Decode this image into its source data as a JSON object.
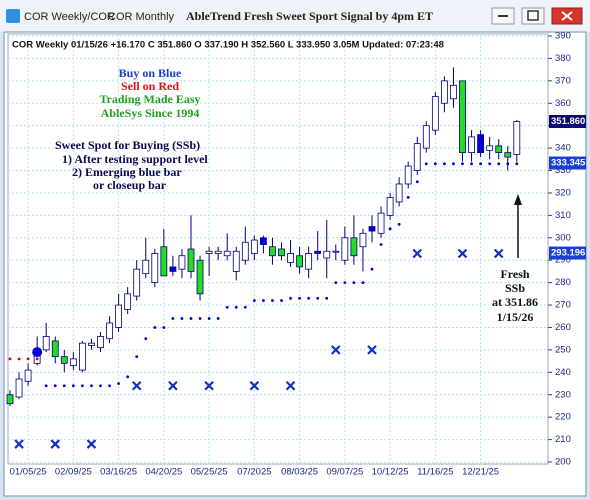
{
  "window": {
    "tabs": [
      "COR Weekly/COR",
      "COR Monthly"
    ],
    "title": "AbleTrend Fresh Sweet Sport Signal by 4pm ET"
  },
  "chart_data": {
    "type": "candlestick",
    "info": "COR  Weekly 01/15/26 +16.170 C 351.860 O 337.190 H 352.560 L 333.950 3.05M Updated: 07:23:48",
    "annotations": {
      "signal_legend": [
        "Buy on Blue",
        "Sell on Red",
        "Trading Made Easy",
        "AbleSys Since 1994"
      ],
      "sweet_spot": [
        "Sweet Spot for Buying (SSb)",
        "1) After testing support level",
        "2) Emerging blue bar",
        "or closeup bar"
      ],
      "fresh": [
        "Fresh",
        "SSb",
        "at 351.86",
        "1/15/26"
      ]
    },
    "categories": [
      null,
      null,
      "01/05/25",
      null,
      null,
      null,
      null,
      "02/09/25",
      null,
      null,
      null,
      null,
      "03/16/25",
      null,
      null,
      null,
      null,
      "04/20/25",
      null,
      null,
      null,
      null,
      "05/25/25",
      null,
      null,
      null,
      null,
      "07/2025",
      null,
      null,
      null,
      null,
      "08/03/25",
      null,
      null,
      null,
      null,
      "09/07/25",
      null,
      null,
      null,
      null,
      "10/12/25",
      null,
      null,
      null,
      null,
      "11/16/25",
      null,
      null,
      null,
      null,
      "12/21/25",
      null,
      null,
      null,
      null
    ],
    "open": [
      230,
      229,
      236,
      244,
      250,
      254,
      247,
      243,
      241,
      252,
      251,
      255,
      260,
      268,
      274,
      284,
      280,
      296,
      285,
      286,
      295,
      290,
      293,
      293,
      292,
      285,
      290,
      293,
      297,
      296,
      295,
      289,
      292,
      286,
      293,
      291,
      294,
      290,
      300,
      296,
      303,
      302,
      310,
      316,
      324,
      330,
      340,
      348,
      360,
      362,
      370,
      338,
      346,
      339,
      341,
      338,
      337.19
    ],
    "close": [
      226,
      237,
      241,
      249,
      256,
      247,
      244,
      246,
      253,
      253,
      256,
      262,
      270,
      275,
      286,
      290,
      293,
      283,
      287,
      292,
      285,
      275,
      294,
      294,
      294,
      294,
      298,
      299,
      300,
      292,
      292,
      293,
      287,
      293,
      294,
      294,
      294,
      300,
      292,
      302,
      305,
      311,
      318,
      324,
      332,
      342,
      350,
      363,
      370,
      368,
      338,
      345,
      338,
      341,
      338,
      336,
      351.86
    ],
    "high": [
      232,
      240,
      244,
      256,
      262,
      256,
      250,
      249,
      254,
      255,
      258,
      265,
      275,
      278,
      290,
      300,
      295,
      304,
      292,
      295,
      310,
      292,
      296,
      296,
      302,
      296,
      305,
      301,
      301,
      300,
      298,
      299,
      296,
      296,
      303,
      308,
      297,
      305,
      310,
      304,
      310,
      314,
      320,
      327,
      334,
      345,
      352,
      365,
      372,
      376,
      370,
      348,
      348,
      345,
      344,
      341,
      352.56
    ],
    "low": [
      225,
      228,
      234,
      243,
      249,
      244,
      240,
      241,
      240,
      250,
      249,
      253,
      258,
      266,
      272,
      282,
      278,
      283,
      283,
      282,
      282,
      272,
      283,
      290,
      290,
      281,
      288,
      290,
      293,
      288,
      290,
      287,
      284,
      282,
      290,
      282,
      290,
      288,
      288,
      285,
      298,
      300,
      308,
      314,
      322,
      328,
      338,
      346,
      356,
      358,
      334,
      334,
      336,
      335,
      335,
      330,
      333.95
    ],
    "candle_colors": [
      "#22dd22",
      "#ffffff",
      "#ffffff",
      "#ffffff",
      "#ffffff",
      "#22dd22",
      "#22dd22",
      "#ffffff",
      "#ffffff",
      "#ffffff",
      "#ffffff",
      "#ffffff",
      "#ffffff",
      "#ffffff",
      "#ffffff",
      "#ffffff",
      "#ffffff",
      "#22dd22",
      "#0000dd",
      "#ffffff",
      "#22dd22",
      "#22dd22",
      "#ffffff",
      "#ffffff",
      "#ffffff",
      "#ffffff",
      "#ffffff",
      "#ffffff",
      "#0000dd",
      "#22dd22",
      "#22dd22",
      "#ffffff",
      "#22dd22",
      "#ffffff",
      "#0000dd",
      "#ffffff",
      "#ffffff",
      "#ffffff",
      "#22dd22",
      "#ffffff",
      "#0000dd",
      "#ffffff",
      "#ffffff",
      "#ffffff",
      "#ffffff",
      "#ffffff",
      "#ffffff",
      "#ffffff",
      "#ffffff",
      "#ffffff",
      "#22dd22",
      "#ffffff",
      "#0000dd",
      "#ffffff",
      "#22dd22",
      "#22dd22",
      "#ffffff"
    ],
    "candle_outline": "#000080",
    "series": [
      {
        "kind": "dots",
        "color": "#e00000",
        "values": [
          246,
          246,
          246,
          246,
          null,
          null,
          null,
          null,
          null,
          null,
          null,
          null,
          null,
          null,
          null,
          null,
          null,
          null,
          null,
          null,
          null,
          null,
          null,
          null,
          null,
          null,
          null,
          null,
          null,
          null,
          null,
          null,
          null,
          null,
          null,
          null,
          null,
          null,
          null,
          null,
          null,
          null,
          null,
          null,
          null,
          null,
          null,
          null,
          null,
          null,
          null,
          null,
          null,
          null,
          null,
          null,
          null
        ]
      },
      {
        "kind": "dots",
        "color": "#0000cc",
        "values": [
          null,
          null,
          null,
          null,
          234,
          234,
          234,
          234,
          234,
          234,
          234,
          234,
          235,
          238,
          247,
          255,
          260,
          260,
          264,
          264,
          264,
          264,
          264,
          264,
          269,
          269,
          269,
          272,
          272,
          272,
          272,
          273,
          273,
          273,
          273,
          273,
          280,
          280,
          280,
          280,
          286,
          297,
          304,
          306,
          318,
          325,
          333,
          333,
          333,
          333,
          333,
          333,
          333,
          333,
          333,
          333,
          333
        ]
      },
      {
        "kind": "cross",
        "color": "#1030c0",
        "values": [
          null,
          208,
          null,
          null,
          null,
          208,
          null,
          null,
          null,
          208,
          null,
          null,
          null,
          null,
          234,
          null,
          null,
          null,
          234,
          null,
          null,
          null,
          234,
          null,
          null,
          null,
          null,
          234,
          null,
          null,
          null,
          234,
          null,
          null,
          null,
          null,
          250,
          null,
          null,
          null,
          250,
          null,
          null,
          null,
          null,
          293,
          null,
          null,
          null,
          null,
          293,
          null,
          null,
          null,
          293,
          null,
          null
        ]
      },
      {
        "kind": "circle",
        "color": "#0000dd",
        "values": [
          null,
          null,
          null,
          249,
          null,
          null,
          null,
          null,
          null,
          null,
          null,
          null,
          null,
          null,
          null,
          null,
          null,
          null,
          null,
          null,
          null,
          null,
          null,
          null,
          null,
          null,
          null,
          null,
          null,
          null,
          null,
          null,
          null,
          null,
          null,
          null,
          null,
          null,
          null,
          null,
          null,
          null,
          null,
          null,
          null,
          null,
          null,
          null,
          null,
          null,
          null,
          null,
          null,
          null,
          null,
          null,
          null
        ]
      }
    ],
    "price_labels": [
      {
        "value": 351.86,
        "label": "351.860",
        "color": "#0a0a70"
      },
      {
        "value": 333.345,
        "label": "333.345",
        "color": "#1a3fd0"
      },
      {
        "value": 293.196,
        "label": "293.196",
        "color": "#1a3fd0"
      }
    ],
    "ylim": [
      200,
      390
    ],
    "yticks": [
      200,
      210,
      220,
      230,
      240,
      250,
      260,
      270,
      280,
      290,
      300,
      310,
      320,
      330,
      340,
      350,
      360,
      370,
      380,
      390
    ],
    "grid": true
  }
}
